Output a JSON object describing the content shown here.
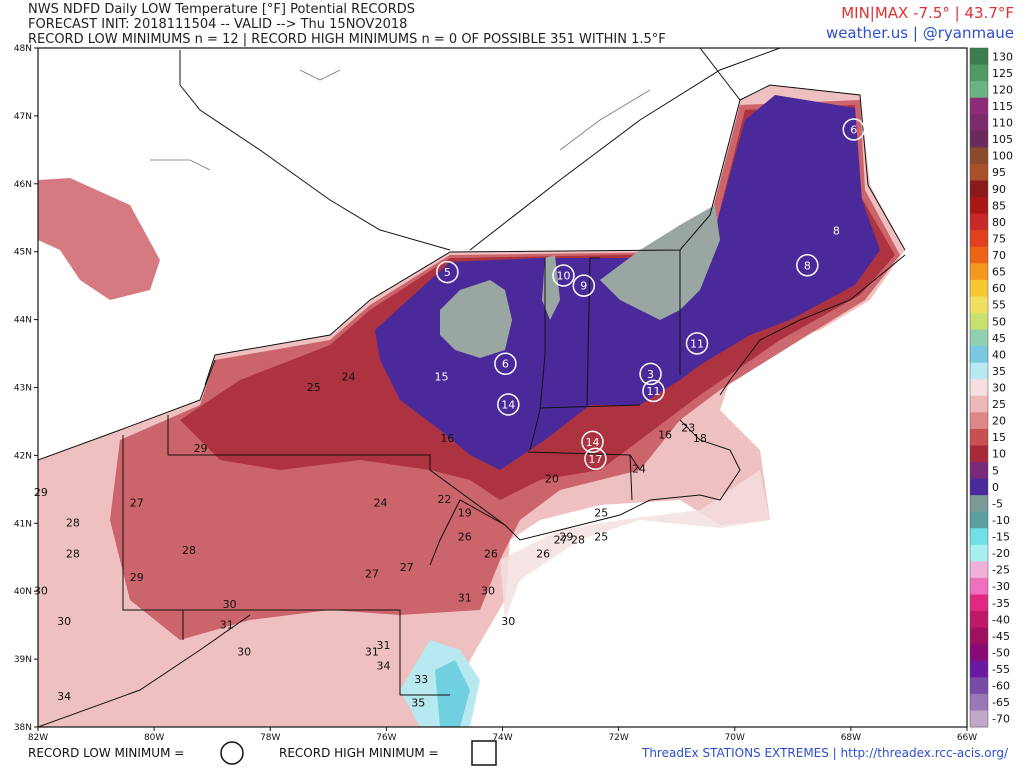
{
  "header": {
    "line1": "NWS NDFD Daily LOW Temperature [°F] Potential RECORDS",
    "line2": "FORECAST INIT: 2018111504 -- VALID --> Thu 15NOV2018",
    "line3": "RECORD LOW MINIMUMS n = 12 | RECORD HIGH MINIMUMS n = 0 OF POSSIBLE 351 WITHIN 1.5°F",
    "minmax": "MIN|MAX -7.5° | 43.7°F",
    "brand": "weather.us | @ryanmaue"
  },
  "colors": {
    "minmax": "#e03030",
    "brand": "#2a4fd0",
    "cold_purple": "#4a2a9a",
    "mid_red": "#a8262e",
    "pink": "#e8a0a0",
    "snow_gray": "#9aa6a2"
  },
  "axes": {
    "lat_labels": [
      "48N",
      "47N",
      "46N",
      "45N",
      "44N",
      "43N",
      "42N",
      "41N",
      "40N",
      "39N",
      "38N"
    ],
    "lon_labels": [
      "82W",
      "80W",
      "78W",
      "76W",
      "74W",
      "72W",
      "70W",
      "68W",
      "66W"
    ]
  },
  "colorbar": {
    "labels": [
      "130",
      "125",
      "120",
      "115",
      "110",
      "105",
      "100",
      "95",
      "90",
      "85",
      "80",
      "75",
      "70",
      "65",
      "60",
      "55",
      "50",
      "45",
      "40",
      "35",
      "30",
      "25",
      "20",
      "15",
      "10",
      "5",
      "0",
      "-5",
      "-10",
      "-15",
      "-20",
      "-25",
      "-30",
      "-35",
      "-40",
      "-45",
      "-50",
      "-55",
      "-60",
      "-65",
      "-70"
    ],
    "colors": [
      "#3b7d4f",
      "#4f9a66",
      "#6bb383",
      "#8c2c78",
      "#7b2a6a",
      "#6a2a5c",
      "#8b4a2a",
      "#a8502a",
      "#8a1a1a",
      "#a81616",
      "#c82828",
      "#e04020",
      "#ec6418",
      "#f49820",
      "#f8c830",
      "#f0e060",
      "#c8e070",
      "#90d0b0",
      "#78c8e0",
      "#b8e8f0",
      "#f4e0e0",
      "#ecb8b8",
      "#dc8888",
      "#c85050",
      "#a82a38",
      "#7a2a7a",
      "#4a2a9a",
      "#7a9a98",
      "#5aa0a0",
      "#70e0e8",
      "#a8f0f0",
      "#f0b0d8",
      "#f070c0",
      "#e02880",
      "#c01868",
      "#a01060",
      "#8a0a78",
      "#6a1aa0",
      "#7a4aa8",
      "#9a78b8",
      "#c0a8c8"
    ]
  },
  "station_labels": [
    {
      "v": "25",
      "lon": -77.25,
      "lat": 42.95
    },
    {
      "v": "24",
      "lon": -76.65,
      "lat": 43.1
    },
    {
      "v": "15",
      "lon": -75.05,
      "lat": 43.1
    },
    {
      "v": "16",
      "lon": -74.95,
      "lat": 42.2
    },
    {
      "v": "29",
      "lon": -79.2,
      "lat": 42.05
    },
    {
      "v": "29",
      "lon": -81.95,
      "lat": 41.4
    },
    {
      "v": "27",
      "lon": -80.3,
      "lat": 41.25
    },
    {
      "v": "28",
      "lon": -81.4,
      "lat": 40.95
    },
    {
      "v": "28",
      "lon": -81.4,
      "lat": 40.5
    },
    {
      "v": "28",
      "lon": -79.4,
      "lat": 40.55
    },
    {
      "v": "29",
      "lon": -80.3,
      "lat": 40.15
    },
    {
      "v": "30",
      "lon": -81.95,
      "lat": 39.95
    },
    {
      "v": "30",
      "lon": -78.7,
      "lat": 39.75
    },
    {
      "v": "31",
      "lon": -78.75,
      "lat": 39.45
    },
    {
      "v": "30",
      "lon": -81.55,
      "lat": 39.5
    },
    {
      "v": "30",
      "lon": -78.45,
      "lat": 39.05
    },
    {
      "v": "34",
      "lon": -81.55,
      "lat": 38.4
    },
    {
      "v": "24",
      "lon": -76.1,
      "lat": 41.25
    },
    {
      "v": "22",
      "lon": -75.0,
      "lat": 41.3
    },
    {
      "v": "19",
      "lon": -74.65,
      "lat": 41.1
    },
    {
      "v": "20",
      "lon": -73.15,
      "lat": 41.6
    },
    {
      "v": "26",
      "lon": -74.65,
      "lat": 40.75
    },
    {
      "v": "27",
      "lon": -75.65,
      "lat": 40.3
    },
    {
      "v": "27",
      "lon": -76.25,
      "lat": 40.2
    },
    {
      "v": "26",
      "lon": -74.2,
      "lat": 40.5
    },
    {
      "v": "26",
      "lon": -73.3,
      "lat": 40.5
    },
    {
      "v": "27",
      "lon": -73.0,
      "lat": 40.7
    },
    {
      "v": "29",
      "lon": -72.9,
      "lat": 40.75
    },
    {
      "v": "28",
      "lon": -72.7,
      "lat": 40.7
    },
    {
      "v": "25",
      "lon": -72.3,
      "lat": 41.1
    },
    {
      "v": "25",
      "lon": -72.3,
      "lat": 40.75
    },
    {
      "v": "30",
      "lon": -74.25,
      "lat": 39.95
    },
    {
      "v": "31",
      "lon": -74.65,
      "lat": 39.85
    },
    {
      "v": "30",
      "lon": -73.9,
      "lat": 39.5
    },
    {
      "v": "31",
      "lon": -76.05,
      "lat": 39.15
    },
    {
      "v": "31",
      "lon": -76.25,
      "lat": 39.05
    },
    {
      "v": "34",
      "lon": -76.05,
      "lat": 38.85
    },
    {
      "v": "33",
      "lon": -75.4,
      "lat": 38.65
    },
    {
      "v": "35",
      "lon": -75.45,
      "lat": 38.3
    },
    {
      "v": "16",
      "lon": -71.2,
      "lat": 42.25
    },
    {
      "v": "18",
      "lon": -70.6,
      "lat": 42.2
    },
    {
      "v": "23",
      "lon": -70.8,
      "lat": 42.35
    },
    {
      "v": "24",
      "lon": -71.65,
      "lat": 41.75
    },
    {
      "v": "8",
      "lon": -68.25,
      "lat": 45.25
    }
  ],
  "record_circles": [
    {
      "v": "6",
      "lon": -67.95,
      "lat": 46.8
    },
    {
      "v": "8",
      "lon": -68.75,
      "lat": 44.8
    },
    {
      "v": "5",
      "lon": -74.95,
      "lat": 44.7
    },
    {
      "v": "10",
      "lon": -72.95,
      "lat": 44.65
    },
    {
      "v": "9",
      "lon": -72.6,
      "lat": 44.5
    },
    {
      "v": "6",
      "lon": -73.95,
      "lat": 43.35
    },
    {
      "v": "11",
      "lon": -70.65,
      "lat": 43.65
    },
    {
      "v": "3",
      "lon": -71.45,
      "lat": 43.2
    },
    {
      "v": "11",
      "lon": -71.4,
      "lat": 42.95
    },
    {
      "v": "14",
      "lon": -73.9,
      "lat": 42.75
    },
    {
      "v": "14",
      "lon": -72.45,
      "lat": 42.2
    },
    {
      "v": "17",
      "lon": -72.4,
      "lat": 41.95
    }
  ],
  "footer": {
    "record_low_label": "RECORD LOW MINIMUM =",
    "record_high_label": "RECORD HIGH MINIMUM =",
    "credit": "ThreadEx STATIONS EXTREMES | http://threadex.rcc-acis.org/"
  }
}
